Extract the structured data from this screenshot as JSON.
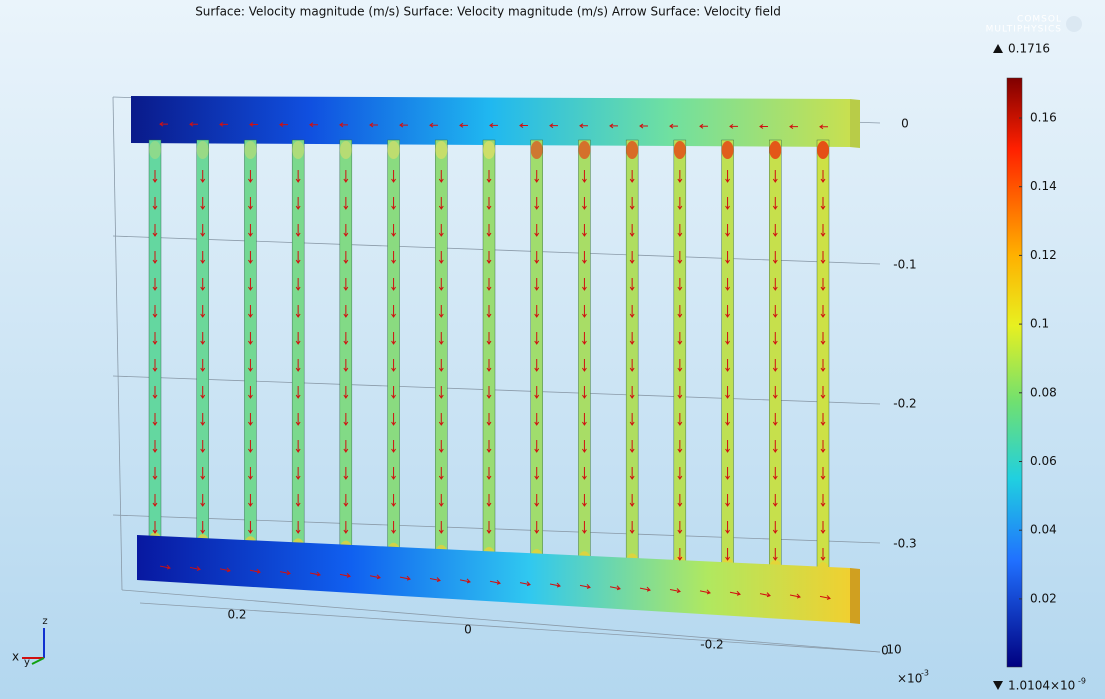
{
  "header": {
    "title": "Surface: Velocity magnitude (m/s)  Surface: Velocity magnitude (m/s)  Arrow Surface: Velocity field",
    "logo": [
      "COMSOL",
      "MULTIPHYSICS"
    ]
  },
  "colorbar": {
    "max": "0.1716",
    "ticks": [
      "0.16",
      "0.14",
      "0.12",
      "0.1",
      "0.08",
      "0.06",
      "0.04",
      "0.02"
    ],
    "min": "1.0104×10",
    "min_exponent": "-9"
  },
  "axes": {
    "z_ticks": [
      "0",
      "-0.1",
      "-0.2",
      "-0.3"
    ],
    "x_ticks": [
      "0.2",
      "0",
      "-0.2"
    ],
    "y_ticks": [
      "0",
      "10"
    ],
    "scale": "×10",
    "scale_exponent": "-3",
    "triad": [
      "x",
      "y",
      "z"
    ]
  }
}
